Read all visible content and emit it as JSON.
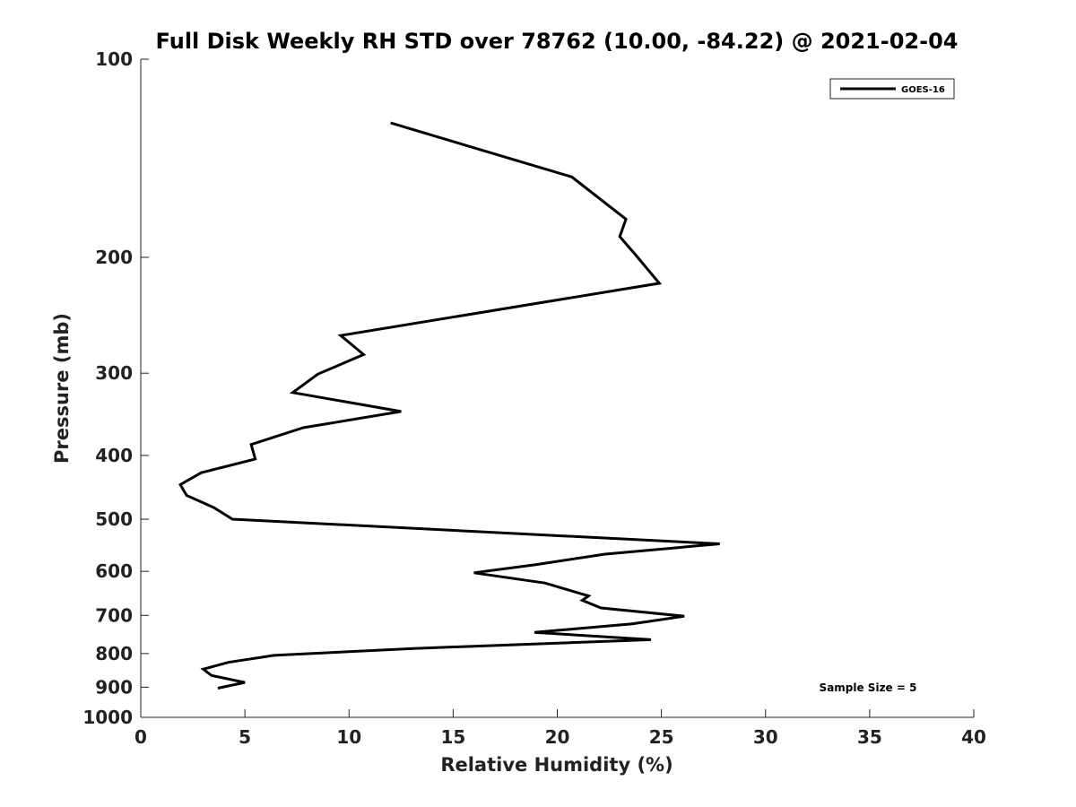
{
  "chart_data": {
    "type": "line",
    "title": "Full Disk Weekly RH STD over 78762 (10.00, -84.22) @ 2021-02-04",
    "xlabel": "Relative Humidity (%)",
    "ylabel": "Pressure (mb)",
    "xlim": [
      0,
      40
    ],
    "ylim": [
      100,
      1000
    ],
    "y_scale": "log",
    "y_reversed": true,
    "grid": false,
    "xticks": [
      0,
      5,
      10,
      15,
      20,
      25,
      30,
      35,
      40
    ],
    "xtick_labels": [
      "0",
      "5",
      "10",
      "15",
      "20",
      "25",
      "30",
      "35",
      "40"
    ],
    "yticks": [
      100,
      200,
      300,
      400,
      500,
      600,
      700,
      800,
      900,
      1000
    ],
    "ytick_labels": [
      "100",
      "200",
      "300",
      "400",
      "500",
      "600",
      "700",
      "800",
      "900",
      "1000"
    ],
    "legend": {
      "position": "top-right",
      "entries": [
        "GOES-16"
      ]
    },
    "annotation": "Sample Size = 5",
    "series": [
      {
        "name": "GOES-16",
        "color": "#000000",
        "points": [
          {
            "x": 12.0,
            "y": 125
          },
          {
            "x": 20.7,
            "y": 151
          },
          {
            "x": 23.3,
            "y": 175
          },
          {
            "x": 23.0,
            "y": 186
          },
          {
            "x": 23.8,
            "y": 199
          },
          {
            "x": 24.9,
            "y": 219
          },
          {
            "x": 9.6,
            "y": 263
          },
          {
            "x": 10.7,
            "y": 281
          },
          {
            "x": 8.5,
            "y": 301
          },
          {
            "x": 7.3,
            "y": 321
          },
          {
            "x": 12.5,
            "y": 343
          },
          {
            "x": 7.8,
            "y": 363
          },
          {
            "x": 5.3,
            "y": 385
          },
          {
            "x": 5.5,
            "y": 405
          },
          {
            "x": 2.9,
            "y": 425
          },
          {
            "x": 1.9,
            "y": 443
          },
          {
            "x": 2.2,
            "y": 460
          },
          {
            "x": 3.5,
            "y": 480
          },
          {
            "x": 4.4,
            "y": 500
          },
          {
            "x": 27.8,
            "y": 545
          },
          {
            "x": 22.3,
            "y": 565
          },
          {
            "x": 19.0,
            "y": 586
          },
          {
            "x": 16.0,
            "y": 603
          },
          {
            "x": 19.4,
            "y": 625
          },
          {
            "x": 21.5,
            "y": 654
          },
          {
            "x": 21.2,
            "y": 664
          },
          {
            "x": 22.1,
            "y": 682
          },
          {
            "x": 26.1,
            "y": 702
          },
          {
            "x": 23.6,
            "y": 721
          },
          {
            "x": 18.9,
            "y": 743
          },
          {
            "x": 24.5,
            "y": 762
          },
          {
            "x": 13.1,
            "y": 786
          },
          {
            "x": 6.4,
            "y": 805
          },
          {
            "x": 4.2,
            "y": 825
          },
          {
            "x": 3.0,
            "y": 845
          },
          {
            "x": 3.4,
            "y": 864
          },
          {
            "x": 5.0,
            "y": 885
          },
          {
            "x": 3.7,
            "y": 903
          }
        ]
      }
    ]
  }
}
